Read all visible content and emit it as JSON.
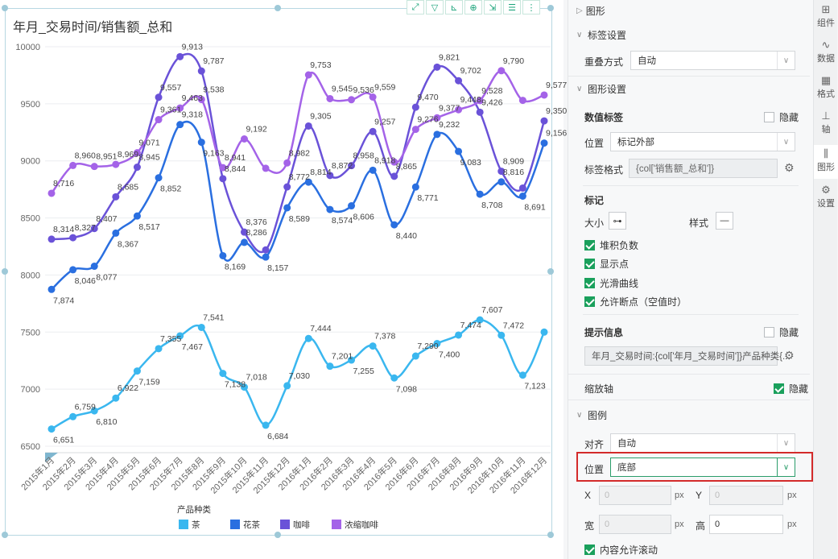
{
  "chart": {
    "title": "年月_交易时间/销售额_总和"
  },
  "chart_data": {
    "type": "line",
    "title": "年月_交易时间/销售额_总和",
    "categories": [
      "2015年1月",
      "2015年2月",
      "2015年3月",
      "2015年4月",
      "2015年5月",
      "2015年6月",
      "2015年7月",
      "2015年8月",
      "2015年9月",
      "2015年10月",
      "2015年11月",
      "2015年12月",
      "2016年1月",
      "2016年2月",
      "2016年3月",
      "2016年4月",
      "2016年5月",
      "2016年6月",
      "2016年7月",
      "2016年8月",
      "2016年9月",
      "2016年10月",
      "2016年11月",
      "2016年12月"
    ],
    "y_ticks": [
      "10000",
      "9500",
      "9000",
      "8500",
      "8000",
      "7500",
      "7000",
      "6500"
    ],
    "ylim": [
      6500,
      10000
    ],
    "series": [
      {
        "name": "茶",
        "color": "#3ab7ef",
        "values": [
          6651,
          6759,
          6810,
          6922,
          7159,
          7355,
          7467,
          7541,
          7138,
          7018,
          6684,
          7030,
          7444,
          7201,
          7255,
          7378,
          7098,
          7290,
          7400,
          7474,
          7607,
          7472,
          7123,
          7500
        ],
        "labels": [
          "6,651",
          "6,759",
          "6,810",
          "6,922",
          "7,159",
          "7,355",
          "7,467",
          "7,541",
          "7,138",
          "7,018",
          "6,684",
          "7,030",
          "7,444",
          "7,201",
          "7,255",
          "7,378",
          "7,098",
          "7,290",
          "7,400",
          "7,474",
          "7,607",
          "7,472",
          "7,123",
          ""
        ]
      },
      {
        "name": "花茶",
        "color": "#2a6fe0",
        "values": [
          7874,
          8046,
          8077,
          8367,
          8517,
          8852,
          9318,
          9163,
          8169,
          8286,
          8157,
          8589,
          8814,
          8574,
          8606,
          8918,
          8440,
          8771,
          9232,
          9083,
          8708,
          8816,
          8691,
          9156
        ],
        "labels": [
          "7,874",
          "8,046",
          "8,077",
          "8,367",
          "8,517",
          "8,852",
          "9,318",
          "9,163",
          "8,169",
          "8,286",
          "8,157",
          "8,589",
          "8,814",
          "8,574",
          "8,606",
          "8,918",
          "8,440",
          "8,771",
          "9,232",
          "9,083",
          "8,708",
          "8,816",
          "8,691",
          "9,156"
        ]
      },
      {
        "name": "咖啡",
        "color": "#6a52d8",
        "values": [
          8314,
          8327,
          8407,
          8685,
          8945,
          9557,
          9913,
          9787,
          8844,
          8376,
          8220,
          8772,
          9305,
          8872,
          8958,
          9257,
          8865,
          9470,
          9821,
          9702,
          9426,
          8909,
          8762,
          9350
        ],
        "labels": [
          "8,314",
          "8,327",
          "8,407",
          "8,685",
          "8,945",
          "9,557",
          "9,913",
          "9,787",
          "8,844",
          "8,376",
          "",
          "8,772",
          "9,305",
          "8,872",
          "8,958",
          "9,257",
          "8,865",
          "9,470",
          "9,821",
          "9,702",
          "9,426",
          "8,909",
          "",
          "9,350"
        ]
      },
      {
        "name": "浓缩咖啡",
        "color": "#a463e8",
        "values": [
          8716,
          8960,
          8951,
          8969,
          9071,
          9361,
          9463,
          9538,
          8941,
          9192,
          8935,
          8982,
          9753,
          9545,
          9536,
          9559,
          8990,
          9276,
          9377,
          9448,
          9528,
          9790,
          9530,
          9577
        ],
        "labels": [
          "8,716",
          "8,960",
          "8,951",
          "8,969",
          "9,071",
          "9,361",
          "9,463",
          "9,538",
          "8,941",
          "9,192",
          "",
          "8,982",
          "9,753",
          "9,545",
          "9,536",
          "9,559",
          "",
          "9,276",
          "9,377",
          "9,448",
          "9,528",
          "9,790",
          "",
          "9,577"
        ]
      }
    ],
    "legend": {
      "title": "产品种类",
      "placement": "bottom"
    },
    "grid": true,
    "smooth": true
  },
  "toolbar_icons": [
    "fit-icon",
    "filter-icon",
    "drill-icon",
    "zoom-icon",
    "export-icon",
    "list-icon",
    "more-icon"
  ],
  "panel": {
    "header": "图形",
    "label_section": {
      "title": "标签设置",
      "overlap_label": "重叠方式",
      "overlap_value": "自动"
    },
    "graph_section": {
      "title": "图形设置",
      "data_label": "数值标签",
      "hide_label": "隐藏",
      "position_label": "位置",
      "position_value": "标记外部",
      "format_label": "标签格式",
      "format_value": "{col['销售额_总和']}",
      "marker_label": "标记",
      "size_label": "大小",
      "style_label": "样式",
      "opt_stack_negative": "堆积负数",
      "opt_show_points": "显示点",
      "opt_smooth": "光滑曲线",
      "opt_allow_break": "允许断点（空值时）",
      "tooltip_label": "提示信息",
      "tooltip_hide": "隐藏",
      "tooltip_value": "年月_交易时间:{col['年月_交易时间']}产品种类{..."
    },
    "zoom_axis": {
      "label": "缩放轴",
      "hide": "隐藏"
    },
    "legend_section": {
      "title": "图例",
      "align_label": "对齐",
      "align_value": "自动",
      "position_label": "位置",
      "position_value": "底部",
      "x_label": "X",
      "x_value": "0",
      "y_label": "Y",
      "y_value": "0",
      "width_label": "宽",
      "width_value": "0",
      "height_label": "高",
      "height_value": "0",
      "px": "px",
      "scroll_label": "内容允许滚动"
    }
  },
  "side_tabs": [
    {
      "label": "组件",
      "icon": "component-icon"
    },
    {
      "label": "数据",
      "icon": "data-icon"
    },
    {
      "label": "格式",
      "icon": "format-icon"
    },
    {
      "label": "轴",
      "icon": "axis-icon"
    },
    {
      "label": "图形",
      "icon": "graph-icon"
    },
    {
      "label": "设置",
      "icon": "settings-icon"
    }
  ]
}
